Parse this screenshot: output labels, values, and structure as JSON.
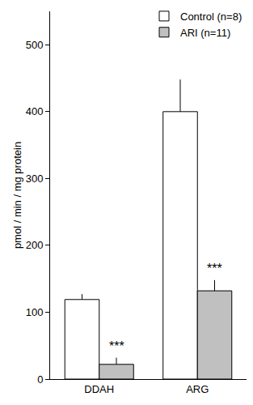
{
  "chart_data": {
    "type": "bar",
    "y_label": "pmol / min / mg protein",
    "categories": [
      "DDAH",
      "ARG"
    ],
    "series": [
      {
        "name": "Control (n=8)",
        "color": "#ffffff",
        "values": [
          119,
          400
        ],
        "errors": [
          8,
          48
        ]
      },
      {
        "name": "ARI (n=11)",
        "color": "#c0c0c0",
        "values": [
          22,
          132
        ],
        "errors": [
          10,
          16
        ]
      }
    ],
    "annotations": [
      {
        "category": "DDAH",
        "series": "ARI (n=11)",
        "text": "***"
      },
      {
        "category": "ARG",
        "series": "ARI (n=11)",
        "text": "***"
      }
    ],
    "ylim": [
      0,
      550
    ],
    "yticks": [
      0,
      100,
      200,
      300,
      400,
      500
    ],
    "grid": false,
    "legend": "top right"
  }
}
